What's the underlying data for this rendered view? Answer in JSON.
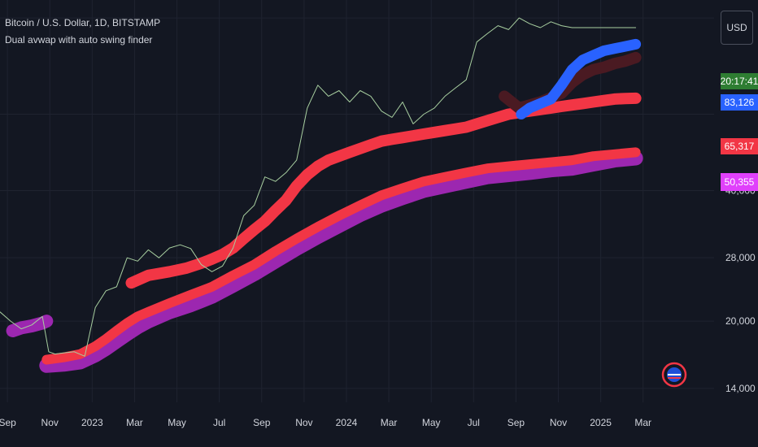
{
  "header": {
    "symbol": "Bitcoin / U.S. Dollar, 1D, BITSTAMP",
    "indicator": "Dual avwap with auto swing finder"
  },
  "currency": "USD",
  "price_labels": {
    "clock": "20:17:41",
    "blue": "83,126",
    "red": "65,317",
    "magenta": "50,355"
  },
  "colors": {
    "background": "#131722",
    "grid": "#1f2330",
    "price_line": "#a8cfa0",
    "blue_band": "#2962ff",
    "dark_red_band": "#4a1a22",
    "red_band": "#f23645",
    "purple_band": "#9c27b0",
    "clock_label": "#2e7d32",
    "magenta_label": "#e040fb"
  },
  "chart_data": {
    "type": "line",
    "x_ticks": [
      "Sep",
      "Nov",
      "2023",
      "Mar",
      "May",
      "Jul",
      "Sep",
      "Nov",
      "2024",
      "Mar",
      "May",
      "Jul",
      "Sep",
      "Nov",
      "2025",
      "Mar"
    ],
    "y_ticks": [
      "40,000",
      "28,000",
      "20,000",
      "14,000"
    ],
    "y_scale": "log",
    "ylim": [
      13000,
      110000
    ],
    "x_domain_months": [
      0,
      31
    ],
    "series": [
      {
        "key": "price",
        "x": [
          0,
          0.5,
          1,
          1.5,
          2,
          2.3,
          2.6,
          3,
          3.5,
          4,
          4.5,
          5,
          5.5,
          6,
          6.5,
          7,
          7.5,
          8,
          8.5,
          9,
          9.5,
          10,
          10.5,
          11,
          11.5,
          12,
          12.5,
          13,
          13.5,
          14,
          14.5,
          15,
          15.5,
          16,
          16.5,
          17,
          17.5,
          18,
          18.5,
          19,
          19.5,
          20,
          20.5,
          21,
          21.5,
          22,
          22.5,
          23,
          23.5,
          24,
          24.5,
          25,
          25.5,
          26,
          26.5,
          27,
          27.5,
          28,
          28.5,
          29,
          29.5,
          30
        ],
        "values": [
          21000,
          20000,
          19200,
          19600,
          20500,
          17000,
          16800,
          16900,
          17000,
          16600,
          21500,
          23500,
          24000,
          28000,
          27500,
          29200,
          28000,
          29500,
          30000,
          29400,
          27000,
          26000,
          26800,
          29500,
          35000,
          37000,
          43000,
          42000,
          44000,
          47000,
          62000,
          70000,
          66000,
          68000,
          64000,
          68000,
          66000,
          61000,
          59000,
          64000,
          57000,
          60000,
          62000,
          66000,
          69000,
          72000,
          88000,
          92000,
          96000,
          94000,
          100000,
          97000,
          95000,
          98000,
          96000,
          95000,
          95000,
          95000,
          95000,
          95000,
          95000,
          95000
        ]
      },
      {
        "key": "blue_band",
        "x": [
          24.6,
          25,
          25.5,
          26,
          26.5,
          27,
          27.5,
          28,
          28.5,
          29,
          29.5,
          30
        ],
        "values": [
          60000,
          62000,
          63500,
          65000,
          70000,
          76000,
          80000,
          82000,
          84000,
          85000,
          86000,
          87000
        ]
      },
      {
        "key": "dark_red_band",
        "x": [
          23.8,
          24.5,
          25,
          25.5,
          26,
          26.5,
          27,
          27.5,
          28,
          28.5,
          29,
          29.5,
          30
        ],
        "values": [
          66000,
          62000,
          63000,
          64000,
          65500,
          67000,
          71000,
          74000,
          76000,
          77000,
          78500,
          79500,
          81000
        ]
      },
      {
        "key": "red_upper",
        "x": [
          6.2,
          7,
          8,
          8.8,
          9.5,
          10,
          10.5,
          11,
          11.5,
          12,
          12.5,
          13,
          13.5,
          14,
          14.5,
          15,
          15.5,
          16,
          16.5,
          17,
          17.5,
          18,
          18.5,
          19,
          19.5,
          20,
          20.5,
          21,
          21.5,
          22,
          22.5,
          23,
          23.5,
          24,
          24.5,
          25,
          25.5,
          26,
          26.5,
          27,
          27.5,
          28,
          28.5,
          29,
          29.5,
          30
        ],
        "values": [
          24500,
          25500,
          26000,
          26500,
          27200,
          27800,
          28500,
          29500,
          31000,
          32500,
          34000,
          36000,
          38000,
          41000,
          43500,
          45500,
          47000,
          48000,
          49000,
          50000,
          51000,
          52000,
          52500,
          53000,
          53500,
          54000,
          54500,
          55000,
          55500,
          56000,
          57000,
          58000,
          59000,
          60000,
          60500,
          61000,
          61500,
          62000,
          62500,
          63000,
          63500,
          64000,
          64500,
          65000,
          65200,
          65300
        ]
      },
      {
        "key": "red_lower",
        "x": [
          2.2,
          3,
          3.8,
          4.5,
          5,
          5.5,
          6,
          6.5,
          7,
          8,
          9,
          10,
          11,
          12,
          13,
          14,
          15,
          16,
          17,
          18,
          19,
          20,
          21,
          22,
          23,
          24,
          25,
          26,
          27,
          28,
          29,
          30
        ],
        "values": [
          16300,
          16500,
          16800,
          17500,
          18200,
          19000,
          19800,
          20500,
          21000,
          22000,
          23000,
          24000,
          25500,
          27000,
          29000,
          31000,
          33000,
          35000,
          37000,
          39000,
          40500,
          42000,
          43000,
          44000,
          45000,
          45500,
          46000,
          46500,
          47000,
          48000,
          48500,
          49000
        ]
      },
      {
        "key": "purple",
        "x": [
          2.2,
          3,
          3.8,
          4.5,
          5,
          5.5,
          6,
          6.5,
          7,
          8,
          9,
          10,
          11,
          12,
          13,
          14,
          15,
          16,
          17,
          18,
          19,
          20,
          21,
          22,
          23,
          24,
          25,
          26,
          27,
          28,
          29,
          30
        ],
        "values": [
          15800,
          15900,
          16100,
          16700,
          17300,
          18000,
          18700,
          19400,
          20000,
          21000,
          21800,
          22800,
          24200,
          25700,
          27500,
          29400,
          31300,
          33200,
          35200,
          37000,
          38500,
          40000,
          41000,
          42000,
          43000,
          43500,
          44000,
          44600,
          45000,
          46000,
          47000,
          47500
        ]
      },
      {
        "key": "purple_early",
        "x": [
          0.6,
          1,
          1.5,
          2,
          2.2
        ],
        "values": [
          19000,
          19300,
          19500,
          19800,
          20000
        ]
      }
    ]
  }
}
